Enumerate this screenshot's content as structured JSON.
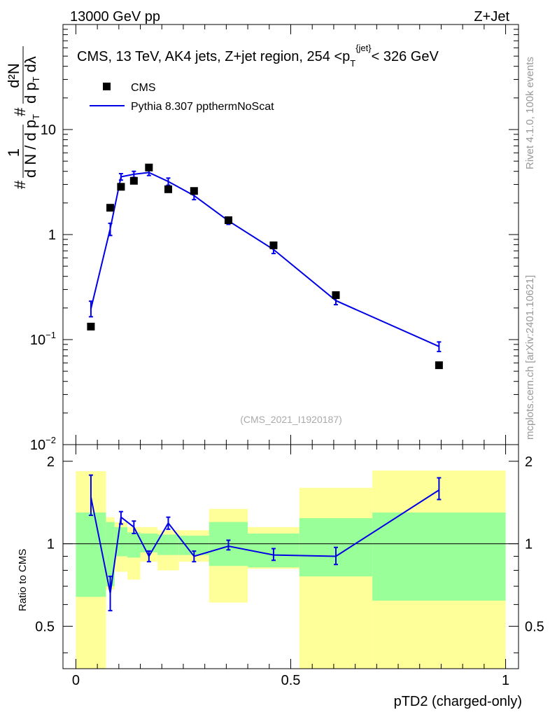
{
  "header": {
    "left": "13000 GeV pp",
    "right": "Z+Jet"
  },
  "side_labels": {
    "rivet": "Rivet 4.1.0,  100k events",
    "mcplots": "mcplots.cern.ch [arXiv:2401.10621]"
  },
  "colors": {
    "mc_line": "#0000e6",
    "data_marker": "#000000",
    "band_inner": "#99ff99",
    "band_outer": "#ffff99"
  },
  "chart_data": [
    {
      "type": "line",
      "panel": "main",
      "title": "CMS, 13 TeV, AK4 jets, Z+jet region, 254 <p_T^{jet}< 326 GeV",
      "title_parts": {
        "pre": "CMS, 13 TeV, AK4 jets, Z+jet region, 254 <p",
        "sub": "T",
        "sup": "{jet}",
        "post": "< 326 GeV"
      },
      "ylabel": "# 1/(d N / d pT) # d²N/(d pT dλ)",
      "ylabel_parts": {
        "sharp": "#",
        "one": "1",
        "dn": "d N / d p",
        "t": "T",
        "d2n": "d²N",
        "dpt": "d p",
        "dlambda": "dλ"
      },
      "yscale": "log",
      "ylim": [
        0.01,
        100
      ],
      "yticks": [
        {
          "value": 0.01,
          "base": "10",
          "exp": "−2"
        },
        {
          "value": 0.1,
          "base": "10",
          "exp": "−1"
        },
        {
          "value": 1,
          "base": "1",
          "exp": ""
        },
        {
          "value": 10,
          "base": "10",
          "exp": ""
        }
      ],
      "xlim": [
        -0.03,
        1.03
      ],
      "legend": [
        {
          "name": "CMS",
          "kind": "marker"
        },
        {
          "name": "Pythia 8.307 ppthermNoScat",
          "kind": "line"
        }
      ],
      "legend_position": "top-left",
      "watermark": "(CMS_2021_I1920187)",
      "series": [
        {
          "name": "CMS",
          "x": [
            0.035,
            0.08,
            0.105,
            0.135,
            0.17,
            0.215,
            0.275,
            0.355,
            0.46,
            0.605,
            0.845
          ],
          "values": [
            0.133,
            1.8,
            2.85,
            3.25,
            4.35,
            2.7,
            2.6,
            1.37,
            0.79,
            0.265,
            0.057
          ]
        },
        {
          "name": "Pythia 8.307 ppthermNoScat",
          "x": [
            0.035,
            0.08,
            0.105,
            0.135,
            0.17,
            0.215,
            0.275,
            0.355,
            0.46,
            0.605,
            0.845
          ],
          "values": [
            0.196,
            1.14,
            3.55,
            3.75,
            3.9,
            3.2,
            2.35,
            1.35,
            0.72,
            0.235,
            0.086
          ],
          "err_low": [
            0.165,
            0.98,
            3.3,
            3.5,
            3.65,
            2.95,
            2.15,
            1.25,
            0.66,
            0.215,
            0.077
          ],
          "err_high": [
            0.232,
            1.28,
            3.8,
            4.0,
            4.15,
            3.45,
            2.55,
            1.45,
            0.78,
            0.255,
            0.095
          ]
        }
      ]
    },
    {
      "type": "line",
      "panel": "ratio",
      "ylabel": "Ratio to CMS",
      "xlabel": "pTD2 (charged-only)",
      "ylim": [
        0.35,
        2.3
      ],
      "yticks": [
        0.5,
        1,
        2
      ],
      "ytick_labels": [
        "0.5",
        "1",
        "2"
      ],
      "xlim": [
        -0.03,
        1.03
      ],
      "xticks": [
        0,
        0.5,
        1
      ],
      "xtick_labels": [
        "0",
        "0.5",
        "1"
      ],
      "reference_line": 1,
      "bands": [
        {
          "x0": 0.0,
          "x1": 0.07,
          "inner": [
            0.64,
            1.3
          ],
          "outer": [
            0.3,
            1.84
          ]
        },
        {
          "x0": 0.07,
          "x1": 0.09,
          "inner": [
            0.7,
            1.2
          ],
          "outer": [
            0.68,
            1.25
          ]
        },
        {
          "x0": 0.09,
          "x1": 0.12,
          "inner": [
            0.9,
            1.15
          ],
          "outer": [
            0.79,
            1.2
          ]
        },
        {
          "x0": 0.12,
          "x1": 0.15,
          "inner": [
            0.89,
            1.1
          ],
          "outer": [
            0.74,
            1.15
          ]
        },
        {
          "x0": 0.15,
          "x1": 0.19,
          "inner": [
            0.93,
            1.09
          ],
          "outer": [
            0.86,
            1.15
          ]
        },
        {
          "x0": 0.19,
          "x1": 0.24,
          "inner": [
            0.91,
            1.08
          ],
          "outer": [
            0.8,
            1.12
          ]
        },
        {
          "x0": 0.24,
          "x1": 0.31,
          "inner": [
            0.91,
            1.07
          ],
          "outer": [
            0.86,
            1.12
          ]
        },
        {
          "x0": 0.31,
          "x1": 0.4,
          "inner": [
            0.83,
            1.2
          ],
          "outer": [
            0.61,
            1.34
          ]
        },
        {
          "x0": 0.4,
          "x1": 0.52,
          "inner": [
            0.82,
            1.09
          ],
          "outer": [
            0.81,
            1.15
          ]
        },
        {
          "x0": 0.52,
          "x1": 0.69,
          "inner": [
            0.76,
            1.24
          ],
          "outer": [
            0.3,
            1.6
          ]
        },
        {
          "x0": 0.69,
          "x1": 1.0,
          "inner": [
            0.62,
            1.3
          ],
          "outer": [
            0.3,
            1.85
          ]
        }
      ],
      "series": [
        {
          "name": "Pythia 8.307 ppthermNoScat / CMS",
          "x": [
            0.035,
            0.08,
            0.105,
            0.135,
            0.17,
            0.215,
            0.275,
            0.355,
            0.46,
            0.605,
            0.845
          ],
          "values": [
            1.48,
            0.66,
            1.25,
            1.15,
            0.9,
            1.19,
            0.9,
            0.98,
            0.91,
            0.9,
            1.57
          ],
          "err_low": [
            1.27,
            0.57,
            1.18,
            1.09,
            0.86,
            1.13,
            0.86,
            0.95,
            0.87,
            0.84,
            1.45
          ],
          "err_high": [
            1.78,
            0.76,
            1.31,
            1.21,
            0.94,
            1.25,
            0.94,
            1.03,
            0.96,
            0.97,
            1.74
          ]
        }
      ]
    }
  ]
}
